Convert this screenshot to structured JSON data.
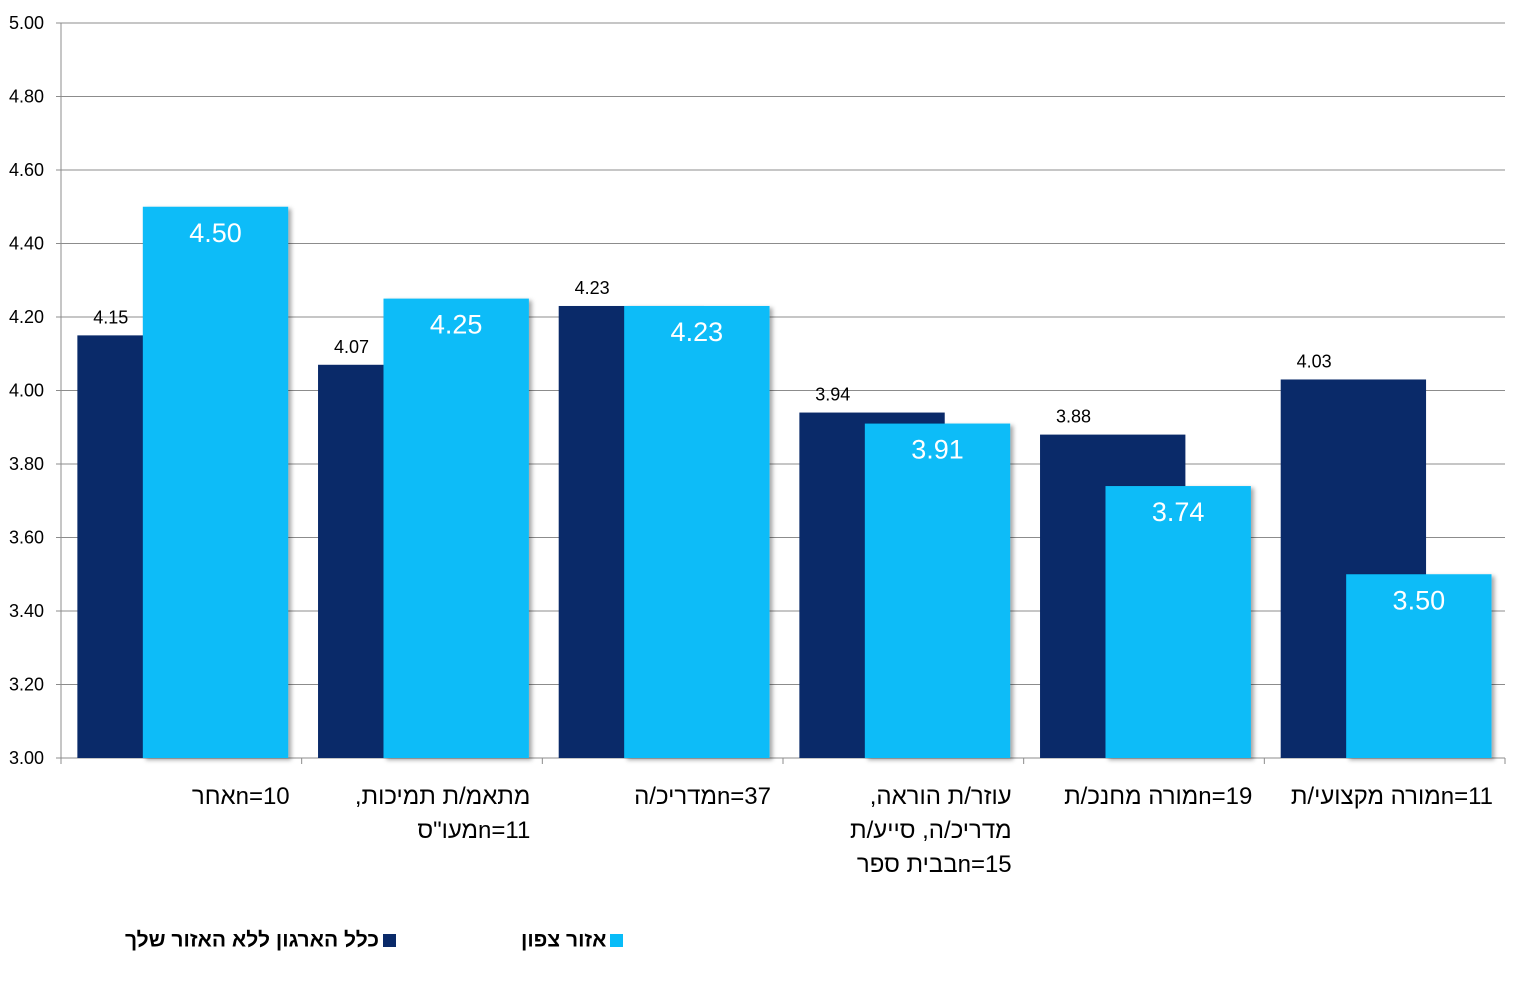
{
  "chart_data": {
    "type": "bar",
    "categories": [
      [
        "אחר",
        "n=10"
      ],
      [
        "מתאמ/ת תמיכות,",
        "מעו\"ס",
        "n=11"
      ],
      [
        "מדריכ/ה",
        "n=37"
      ],
      [
        "עוזר/ת הוראה,",
        "מדריכ/ה, סייע/ת",
        "בבית ספר",
        "n=15"
      ],
      [
        "מורה מחנכ/ת",
        "n=19"
      ],
      [
        "מורה מקצועי/ת",
        "n=11"
      ]
    ],
    "category_labels": [
      [
        "n=10אחר"
      ],
      [
        "מתאמ/ת תמיכות,",
        "n=11מעו\"ס"
      ],
      [
        "n=37מדריכ/ה"
      ],
      [
        "עוזר/ת הוראה,",
        "מדריכ/ה,  סייע/ת",
        "n=15בבית ספר"
      ],
      [
        "n=19מורה מחנכ/ת"
      ],
      [
        "n=11מורה מקצועי/ת"
      ]
    ],
    "series": [
      {
        "name": "כלל הארגון ללא האזור שלך",
        "color": "#0a2a69",
        "values": [
          4.15,
          4.07,
          4.23,
          3.94,
          3.88,
          4.03
        ],
        "labels": [
          "4.15",
          "4.07",
          "4.23",
          "3.94",
          "3.88",
          "4.03"
        ]
      },
      {
        "name": "אזור צפון",
        "color": "#08bcf8",
        "values": [
          4.5,
          4.25,
          4.23,
          3.91,
          3.74,
          3.5
        ],
        "labels": [
          "4.50",
          "4.25",
          "4.23",
          "3.91",
          "3.74",
          "3.50"
        ]
      }
    ],
    "ylim": [
      3.0,
      5.0
    ],
    "yticks": [
      "3.00",
      "3.20",
      "3.40",
      "3.60",
      "3.80",
      "4.00",
      "4.20",
      "4.40",
      "4.60",
      "4.80",
      "5.00"
    ],
    "grid": true,
    "legend_position": "bottom"
  }
}
